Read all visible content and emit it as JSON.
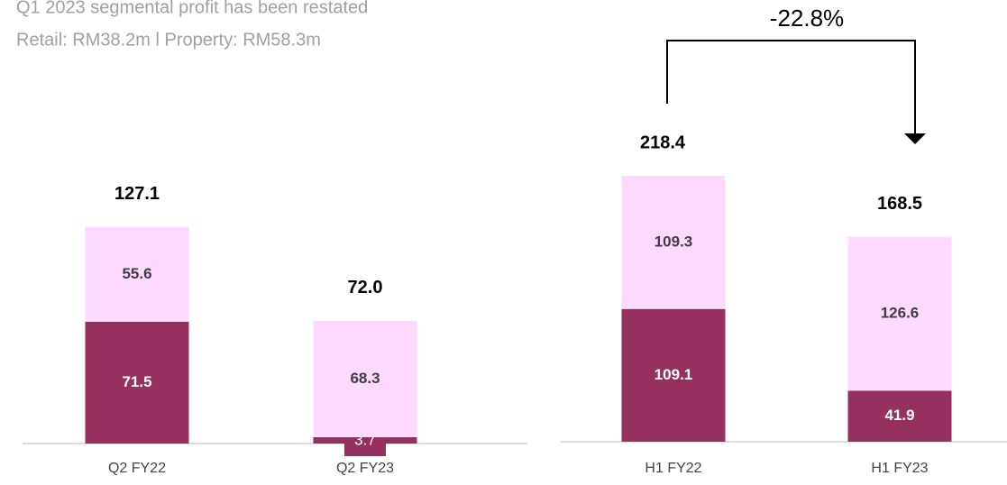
{
  "notes": [
    "Q1 2023 segmental profit has been restated",
    "Retail: RM38.2m l Property: RM58.3m"
  ],
  "chart_data": [
    {
      "type": "stacked_bar",
      "categories": [
        "Q2 FY22",
        "Q2 FY23"
      ],
      "series": [
        {
          "color": "#96305f",
          "values": [
            71.5,
            3.7
          ]
        },
        {
          "color": "#fdd9fd",
          "values": [
            55.6,
            68.3
          ]
        }
      ],
      "totals": [
        127.1,
        72.0
      ],
      "total_labels": [
        "127.1",
        "72.0"
      ],
      "ylim": [
        0,
        200
      ]
    },
    {
      "type": "stacked_bar",
      "categories": [
        "H1 FY22",
        "H1 FY23"
      ],
      "series": [
        {
          "color": "#96305f",
          "values": [
            109.1,
            41.9
          ]
        },
        {
          "color": "#fdd9fd",
          "values": [
            109.3,
            126.6
          ]
        }
      ],
      "totals": [
        218.4,
        168.5
      ],
      "total_labels": [
        "218.4",
        "168.5"
      ],
      "ylim": [
        0,
        300
      ],
      "annotation": "-22.8%"
    }
  ]
}
